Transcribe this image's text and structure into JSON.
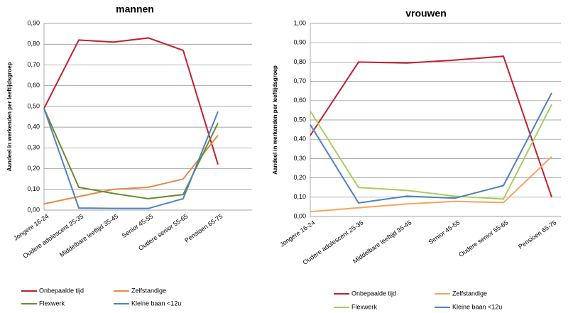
{
  "chart_data": [
    {
      "type": "line",
      "title": "mannen",
      "y_label": "Aandeel in werkenden per leeftijdsgroep",
      "categories": [
        "Jongere 16-24",
        "Oudere adolescent 25-35",
        "Middelbare leeftijd 35-45",
        "Senior 45-55",
        "Oudere senior 55-65",
        "Pensioen 65-75"
      ],
      "ylim": [
        0,
        0.9
      ],
      "yticks": [
        {
          "value": 0,
          "label": "0,00"
        },
        {
          "value": 0.1,
          "label": "0,10"
        },
        {
          "value": 0.2,
          "label": "0,20"
        },
        {
          "value": 0.3,
          "label": "0,30"
        },
        {
          "value": 0.4,
          "label": "0,40"
        },
        {
          "value": 0.5,
          "label": "0,50"
        },
        {
          "value": 0.6,
          "label": "0,60"
        },
        {
          "value": 0.7,
          "label": "0,70"
        },
        {
          "value": 0.8,
          "label": "0,80"
        },
        {
          "value": 0.9,
          "label": "0,90"
        }
      ],
      "grid": true,
      "series": [
        {
          "name": "Onbepaalde tijd",
          "color": "#c0202e",
          "values": [
            0.49,
            0.82,
            0.81,
            0.83,
            0.77,
            0.22
          ]
        },
        {
          "name": "Zelfstandige",
          "color": "#e58a4a",
          "values": [
            0.03,
            0.065,
            0.1,
            0.11,
            0.15,
            0.36
          ]
        },
        {
          "name": "Flexwerk",
          "color": "#6b8a2a",
          "values": [
            0.49,
            0.11,
            0.08,
            0.055,
            0.075,
            0.42
          ]
        },
        {
          "name": "Kleine baan <12u",
          "color": "#4f81bd",
          "values": [
            0.49,
            0.01,
            0.008,
            0.008,
            0.055,
            0.475
          ]
        }
      ]
    },
    {
      "type": "line",
      "title": "vrouwen",
      "y_label": "Aandeel in werkenden per leeftijdsgroep",
      "categories": [
        "Jongere 16-24",
        "Oudere adolescent 25-35",
        "Middelbare leeftijd 35-45",
        "Senior 45-55",
        "Oudere senior 55-65",
        "Pensioen 65-75"
      ],
      "ylim": [
        0,
        1
      ],
      "yticks": [
        {
          "value": 0,
          "label": "0,00"
        },
        {
          "value": 0.1,
          "label": "0,10"
        },
        {
          "value": 0.2,
          "label": "0,20"
        },
        {
          "value": 0.3,
          "label": "0,30"
        },
        {
          "value": 0.4,
          "label": "0,40"
        },
        {
          "value": 0.5,
          "label": "0,50"
        },
        {
          "value": 0.6,
          "label": "0,60"
        },
        {
          "value": 0.7,
          "label": "0,70"
        },
        {
          "value": 0.8,
          "label": "0,80"
        },
        {
          "value": 0.9,
          "label": "0,90"
        },
        {
          "value": 1,
          "label": "1,00"
        }
      ],
      "grid": true,
      "series": [
        {
          "name": "Onbepaalde tijd",
          "color": "#c0202e",
          "values": [
            0.42,
            0.8,
            0.795,
            0.81,
            0.83,
            0.1
          ]
        },
        {
          "name": "Zelfstandige",
          "color": "#f5a45e",
          "values": [
            0.025,
            0.045,
            0.065,
            0.078,
            0.072,
            0.31
          ]
        },
        {
          "name": "Flexwerk",
          "color": "#a6cf5a",
          "values": [
            0.545,
            0.15,
            0.135,
            0.105,
            0.09,
            0.58
          ]
        },
        {
          "name": "Kleine baan <12u",
          "color": "#4f81bd",
          "values": [
            0.475,
            0.07,
            0.105,
            0.095,
            0.16,
            0.64
          ]
        }
      ]
    }
  ]
}
